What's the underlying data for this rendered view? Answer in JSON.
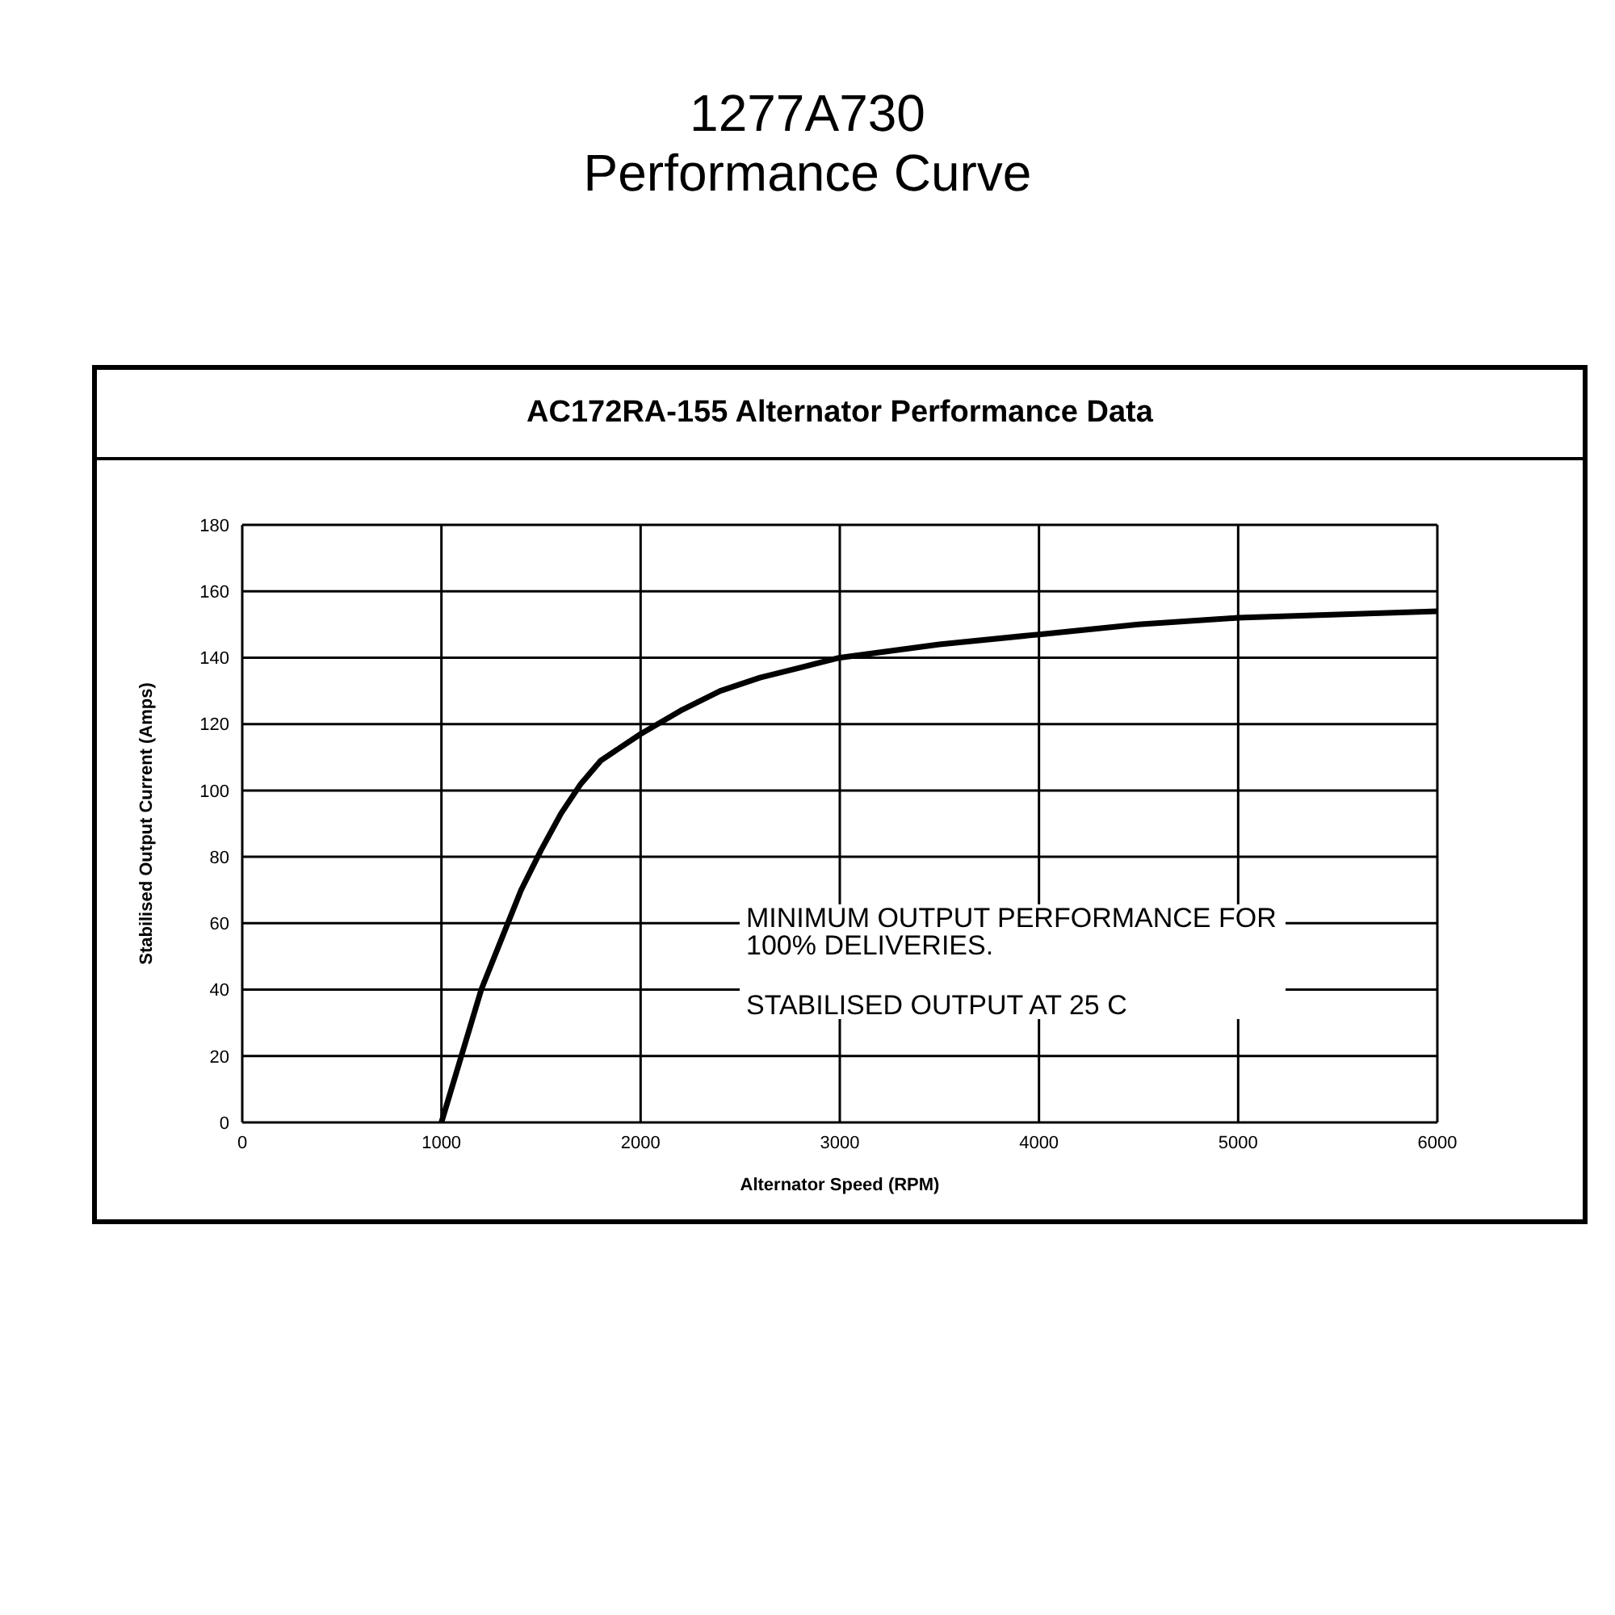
{
  "chart_data": {
    "type": "line",
    "title": "1277A730",
    "subtitle": "Performance Curve",
    "annotations": [
      "AC172RA-155 Alternator Performance Data",
      "MINIMUM OUTPUT PERFORMANCE FOR 100% DELIVERIES.",
      "STABILISED OUTPUT AT 25 C"
    ],
    "xlabel": "Alternator Speed (RPM)",
    "ylabel": "Stabilised Output Current (Amps)",
    "x": [
      1000,
      1100,
      1200,
      1300,
      1400,
      1500,
      1600,
      1700,
      1800,
      1900,
      2000,
      2200,
      2400,
      2600,
      2800,
      3000,
      3500,
      4000,
      4500,
      5000,
      5500,
      6000
    ],
    "series": [
      {
        "color": "#000000",
        "values": [
          0,
          20,
          40,
          55,
          70,
          82,
          93,
          102,
          109,
          113,
          117,
          124,
          130,
          134,
          137,
          140,
          144,
          147,
          150,
          152,
          153,
          154
        ]
      }
    ],
    "xlim": [
      0,
      6000
    ],
    "xticks": [
      0,
      1000,
      2000,
      3000,
      4000,
      5000,
      6000
    ],
    "ylim": [
      0,
      180
    ],
    "yticks": [
      0,
      20,
      40,
      60,
      80,
      100,
      120,
      140,
      160,
      180
    ],
    "grid": true,
    "marker": "none",
    "line_style": "solid"
  }
}
